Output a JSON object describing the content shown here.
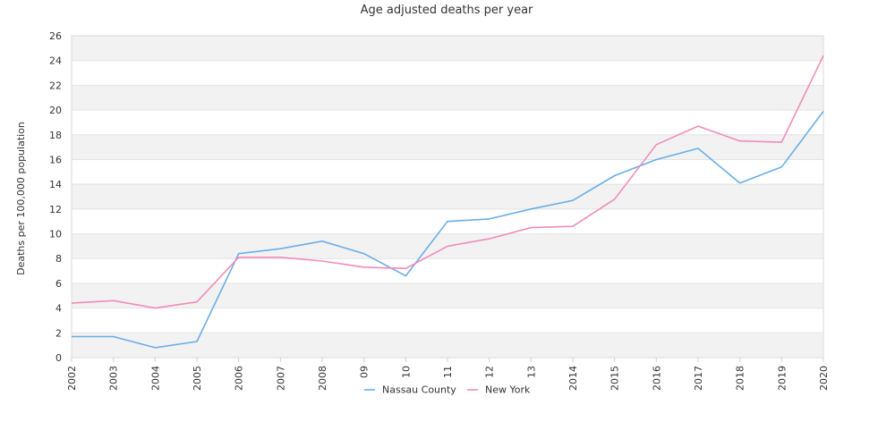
{
  "chart_data": {
    "type": "line",
    "title": "Age adjusted deaths per year",
    "xlabel": "",
    "ylabel": "Deaths per 100,000 population",
    "categories": [
      "2002",
      "2003",
      "2004",
      "2005",
      "2006",
      "2007",
      "2008",
      "09",
      "10",
      "11",
      "12",
      "13",
      "2014",
      "2015",
      "2016",
      "2017",
      "2018",
      "2019",
      "2020"
    ],
    "ylim": [
      0,
      26
    ],
    "yticks": [
      0,
      2,
      4,
      6,
      8,
      10,
      12,
      14,
      16,
      18,
      20,
      22,
      24,
      26
    ],
    "grid": "horizontal alternating bands",
    "legend_position": "bottom",
    "series": [
      {
        "name": "Nassau County",
        "color": "#6aaee8",
        "values": [
          1.7,
          1.7,
          0.8,
          1.3,
          8.4,
          8.8,
          9.4,
          8.4,
          6.6,
          11.0,
          11.2,
          12.0,
          12.7,
          14.7,
          16.0,
          16.9,
          14.1,
          15.4,
          19.9
        ]
      },
      {
        "name": "New York",
        "color": "#f08cba",
        "values": [
          4.4,
          4.6,
          4.0,
          4.5,
          8.1,
          8.1,
          7.8,
          7.3,
          7.2,
          9.0,
          9.6,
          10.5,
          10.6,
          12.8,
          17.2,
          18.7,
          17.5,
          17.4,
          24.4
        ]
      }
    ]
  }
}
